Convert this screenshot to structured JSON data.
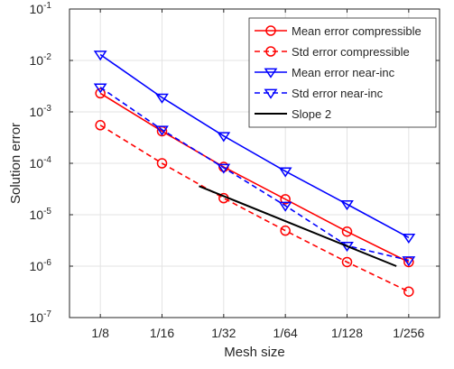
{
  "chart_data": {
    "type": "line",
    "xlabel": "Mesh size",
    "ylabel": "Solution error",
    "yscale": "log",
    "ylim": [
      1e-07,
      0.1
    ],
    "x_ticks": [
      "1/8",
      "1/16",
      "1/32",
      "1/64",
      "1/128",
      "1/256"
    ],
    "y_ticks": [
      {
        "exp": "-7"
      },
      {
        "exp": "-6"
      },
      {
        "exp": "-5"
      },
      {
        "exp": "-4"
      },
      {
        "exp": "-3"
      },
      {
        "exp": "-2"
      },
      {
        "exp": "-1"
      }
    ],
    "y_tick_base": "10",
    "grid": true,
    "legend_position": "top-right",
    "series": [
      {
        "name": "Mean error compressible",
        "color": "#ff0000",
        "line_style": "solid",
        "marker": "circle",
        "x": [
          "1/8",
          "1/16",
          "1/32",
          "1/64",
          "1/128",
          "1/256"
        ],
        "values": [
          0.0023,
          0.00042,
          8.5e-05,
          2e-05,
          4.7e-06,
          1.2e-06
        ]
      },
      {
        "name": "Std error compressible",
        "color": "#ff0000",
        "line_style": "dashed",
        "marker": "circle",
        "x": [
          "1/8",
          "1/16",
          "1/32",
          "1/64",
          "1/128",
          "1/256"
        ],
        "values": [
          0.00055,
          0.0001,
          2.1e-05,
          4.9e-06,
          1.2e-06,
          3.2e-07
        ]
      },
      {
        "name": "Mean error near-inc",
        "color": "#0000ff",
        "line_style": "solid",
        "marker": "triangle-down",
        "x": [
          "1/8",
          "1/16",
          "1/32",
          "1/64",
          "1/128",
          "1/256"
        ],
        "values": [
          0.013,
          0.0019,
          0.00034,
          7e-05,
          1.6e-05,
          3.6e-06
        ]
      },
      {
        "name": "Std error near-inc",
        "color": "#0000ff",
        "line_style": "dashed",
        "marker": "triangle-down",
        "x": [
          "1/8",
          "1/16",
          "1/32",
          "1/64",
          "1/128",
          "1/256"
        ],
        "values": [
          0.003,
          0.00045,
          8.2e-05,
          1.5e-05,
          2.5e-06,
          1.3e-06
        ]
      },
      {
        "name": "Slope 2",
        "color": "#000000",
        "line_style": "solid",
        "marker": "none",
        "x": [
          1.6,
          4.8
        ],
        "values": [
          3.6e-05,
          1e-06
        ]
      }
    ]
  }
}
